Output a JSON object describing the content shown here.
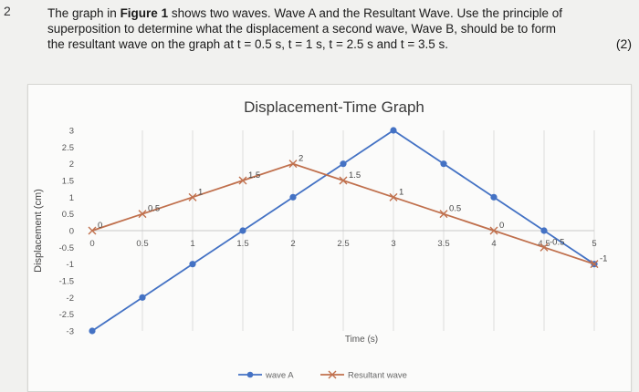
{
  "question": {
    "number": "2",
    "text_before_bold": "The graph in ",
    "bold_ref": "Figure 1",
    "text_line1_after": " shows two waves. Wave A and the Resultant Wave. Use the principle of",
    "line2": "superposition to determine what the displacement a second wave, Wave B, should be to form",
    "line3": "the resultant wave on the graph at t = 0.5 s, t = 1 s, t = 2.5 s and t = 3.5 s.",
    "marks": "(2)"
  },
  "chart_data": {
    "type": "line",
    "title": "Displacement-Time Graph",
    "xlabel": "Time (s)",
    "ylabel": "Displacement (cm)",
    "xlim": [
      0,
      5
    ],
    "ylim": [
      -3,
      3
    ],
    "x_ticks": [
      "0",
      "0.5",
      "1",
      "1.5",
      "2",
      "2.5",
      "3",
      "3.5",
      "4",
      "4.5",
      "5"
    ],
    "y_ticks": [
      "3",
      "2.5",
      "2",
      "1.5",
      "1",
      "0.5",
      "0",
      "-0.5",
      "-1",
      "-1.5",
      "-2",
      "-2.5",
      "-3"
    ],
    "grid": "vertical",
    "legend_position": "bottom",
    "series": [
      {
        "name": "wave A",
        "color": "#4472c4",
        "marker": "circle",
        "x": [
          0,
          0.5,
          1,
          1.5,
          2,
          2.5,
          3,
          3.5,
          4,
          4.5,
          5
        ],
        "y": [
          -3,
          -2,
          -1,
          0,
          1,
          2,
          3,
          2,
          1,
          0,
          -1
        ]
      },
      {
        "name": "Resultant wave",
        "color": "#c0704d",
        "marker": "cross",
        "x": [
          0,
          0.5,
          1,
          1.5,
          2,
          2.5,
          3,
          3.5,
          4,
          4.5,
          5
        ],
        "y": [
          0,
          0.5,
          1,
          1.5,
          2,
          1.5,
          1,
          0.5,
          0,
          -0.5,
          -1
        ]
      }
    ],
    "data_labels": [
      "0",
      "0.5",
      "1",
      "1.5",
      "2",
      "1.5",
      "1",
      "0.5",
      "0",
      "-0.5",
      "-1"
    ]
  }
}
